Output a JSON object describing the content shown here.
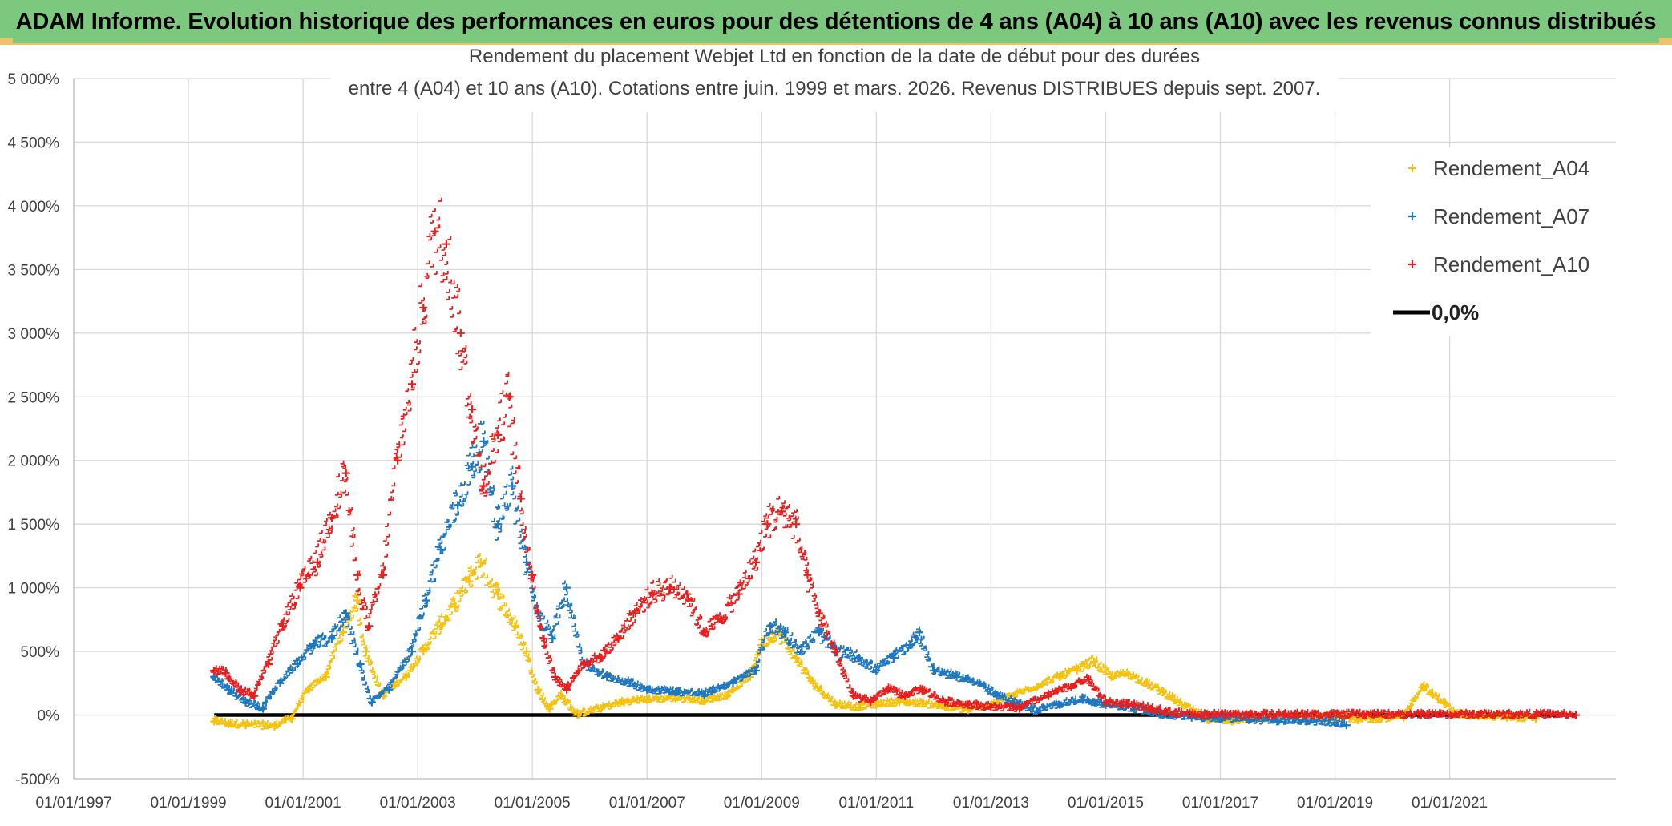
{
  "banner": {
    "title": "ADAM Informe. Evolution historique des performances en euros pour des détentions de 4 ans (A04) à 10 ans (A10) avec les revenus connus distribués",
    "background_color": "#7dc87f",
    "accent_color": "#e9c46a"
  },
  "chart_data": {
    "type": "scatter",
    "title_lines": [
      "Rendement du placement Webjet Ltd en fonction de la date de début pour des durées",
      "entre 4 (A04) et 10 ans (A10). Cotations entre juin. 1999 et mars. 2026. Revenus DISTRIBUES depuis sept. 2007."
    ],
    "xlabel": "",
    "ylabel": "",
    "x_range": [
      1997.0,
      2023.9
    ],
    "ylim": [
      -500,
      5000
    ],
    "grid": true,
    "legend_position": "top-right",
    "y_ticks": [
      {
        "value": -500,
        "label": "-500%"
      },
      {
        "value": 0,
        "label": "0%"
      },
      {
        "value": 500,
        "label": "500%"
      },
      {
        "value": 1000,
        "label": "1 000%"
      },
      {
        "value": 1500,
        "label": "1 500%"
      },
      {
        "value": 2000,
        "label": "2 000%"
      },
      {
        "value": 2500,
        "label": "2 500%"
      },
      {
        "value": 3000,
        "label": "3 000%"
      },
      {
        "value": 3500,
        "label": "3 500%"
      },
      {
        "value": 4000,
        "label": "4 000%"
      },
      {
        "value": 4500,
        "label": "4 500%"
      },
      {
        "value": 5000,
        "label": "5 000%"
      }
    ],
    "x_ticks": [
      {
        "value": 1997.0,
        "label": "01/01/1997"
      },
      {
        "value": 1999.0,
        "label": "01/01/1999"
      },
      {
        "value": 2001.0,
        "label": "01/01/2001"
      },
      {
        "value": 2003.0,
        "label": "01/01/2003"
      },
      {
        "value": 2005.0,
        "label": "01/01/2005"
      },
      {
        "value": 2007.0,
        "label": "01/01/2007"
      },
      {
        "value": 2009.0,
        "label": "01/01/2009"
      },
      {
        "value": 2011.0,
        "label": "01/01/2011"
      },
      {
        "value": 2013.0,
        "label": "01/01/2013"
      },
      {
        "value": 2015.0,
        "label": "01/01/2015"
      },
      {
        "value": 2017.0,
        "label": "01/01/2017"
      },
      {
        "value": 2019.0,
        "label": "01/01/2019"
      },
      {
        "value": 2021.0,
        "label": "01/01/2021"
      }
    ],
    "series": [
      {
        "name": "Rendement_A04",
        "color": "#f5c20f",
        "marker": "plus",
        "x": [
          1999.45,
          1999.7,
          2000.0,
          2000.5,
          2000.8,
          2001.1,
          2001.4,
          2001.7,
          2001.95,
          2002.1,
          2002.4,
          2002.8,
          2003.1,
          2003.4,
          2003.65,
          2003.9,
          2004.1,
          2004.4,
          2004.7,
          2004.9,
          2005.1,
          2005.3,
          2005.5,
          2005.8,
          2006.2,
          2006.6,
          2007.0,
          2007.5,
          2008.0,
          2008.4,
          2008.8,
          2009.0,
          2009.3,
          2009.6,
          2009.9,
          2010.3,
          2010.7,
          2011.0,
          2011.4,
          2011.8,
          2012.2,
          2012.6,
          2013.0,
          2013.4,
          2013.8,
          2014.2,
          2014.5,
          2014.8,
          2015.1,
          2015.4,
          2015.7,
          2016.0,
          2016.2,
          2016.5,
          2016.8,
          2017.2,
          2017.6,
          2018.0,
          2018.5,
          2019.0,
          2019.4,
          2019.8,
          2020.2,
          2020.55,
          2020.7,
          2020.9,
          2021.1,
          2021.5,
          2022.0,
          2022.5
        ],
        "y": [
          -50,
          -70,
          -80,
          -90,
          -30,
          200,
          300,
          650,
          900,
          500,
          150,
          300,
          500,
          700,
          850,
          1050,
          1200,
          950,
          700,
          500,
          200,
          50,
          150,
          0,
          50,
          100,
          120,
          130,
          110,
          150,
          300,
          550,
          650,
          450,
          250,
          80,
          60,
          80,
          100,
          90,
          60,
          40,
          80,
          150,
          220,
          300,
          350,
          420,
          300,
          320,
          250,
          180,
          120,
          30,
          -40,
          -50,
          -40,
          -30,
          -30,
          -20,
          -40,
          -30,
          -20,
          230,
          160,
          100,
          0,
          -10,
          -20,
          -30
        ]
      },
      {
        "name": "Rendement_A07",
        "color": "#1f77c0",
        "marker": "plus",
        "x": [
          1999.45,
          1999.7,
          2000.0,
          2000.3,
          2000.6,
          2000.9,
          2001.2,
          2001.5,
          2001.75,
          2002.0,
          2002.2,
          2002.5,
          2002.9,
          2003.15,
          2003.4,
          2003.7,
          2003.95,
          2004.15,
          2004.4,
          2004.65,
          2004.9,
          2005.1,
          2005.35,
          2005.6,
          2005.9,
          2006.3,
          2006.7,
          2007.0,
          2007.5,
          2008.0,
          2008.5,
          2008.9,
          2009.15,
          2009.4,
          2009.7,
          2010.0,
          2010.3,
          2010.7,
          2011.0,
          2011.3,
          2011.6,
          2011.75,
          2012.0,
          2012.4,
          2012.8,
          2013.1,
          2013.4,
          2013.8,
          2014.2,
          2014.6,
          2015.0,
          2015.5,
          2016.0,
          2016.5,
          2017.0,
          2017.5,
          2018.0,
          2018.5,
          2019.0,
          2019.2
        ],
        "y": [
          300,
          200,
          100,
          50,
          250,
          400,
          550,
          600,
          800,
          400,
          100,
          200,
          500,
          900,
          1300,
          1650,
          1950,
          2150,
          1500,
          1800,
          1200,
          800,
          600,
          1000,
          400,
          300,
          250,
          200,
          180,
          160,
          250,
          350,
          700,
          650,
          500,
          650,
          500,
          450,
          350,
          450,
          550,
          650,
          350,
          300,
          250,
          150,
          100,
          30,
          80,
          120,
          80,
          50,
          0,
          -20,
          -30,
          -40,
          -50,
          -50,
          -60,
          -80
        ]
      },
      {
        "name": "Rendement_A10",
        "color": "#e81f1f",
        "marker": "plus",
        "x": [
          1999.45,
          1999.65,
          1999.9,
          2000.15,
          2000.4,
          2000.65,
          2000.95,
          2001.25,
          2001.5,
          2001.75,
          2001.95,
          2002.15,
          2002.4,
          2002.65,
          2002.9,
          2003.1,
          2003.3,
          2003.5,
          2003.75,
          2003.95,
          2004.15,
          2004.4,
          2004.6,
          2004.8,
          2005.0,
          2005.2,
          2005.4,
          2005.6,
          2005.9,
          2006.2,
          2006.5,
          2006.8,
          2007.1,
          2007.4,
          2007.7,
          2008.0,
          2008.3,
          2008.6,
          2008.9,
          2009.1,
          2009.35,
          2009.6,
          2009.8,
          2010.0,
          2010.3,
          2010.6,
          2010.9,
          2011.2,
          2011.5,
          2011.8,
          2012.2,
          2012.6,
          2013.0,
          2013.5,
          2014.0,
          2014.4,
          2014.7,
          2015.0,
          2015.4,
          2015.8,
          2016.2,
          2016.8,
          2017.5,
          2018.5,
          2019.5,
          2020.5,
          2021.5,
          2022.5,
          2023.2
        ],
        "y": [
          350,
          330,
          200,
          150,
          400,
          700,
          1000,
          1200,
          1550,
          1900,
          1100,
          700,
          1100,
          2000,
          2600,
          3200,
          3800,
          3700,
          3000,
          2400,
          1800,
          2200,
          2500,
          1700,
          1100,
          600,
          300,
          200,
          400,
          450,
          600,
          800,
          950,
          1000,
          950,
          650,
          750,
          950,
          1200,
          1500,
          1600,
          1500,
          1100,
          800,
          500,
          150,
          100,
          200,
          150,
          200,
          100,
          80,
          60,
          50,
          150,
          220,
          280,
          100,
          80,
          50,
          10,
          0,
          0,
          0,
          0,
          0,
          0,
          0,
          0
        ]
      },
      {
        "name": "0,0%",
        "color": "#000000",
        "marker": "line",
        "x": [
          1999.45,
          2023.2
        ],
        "y": [
          0,
          0
        ]
      }
    ]
  }
}
